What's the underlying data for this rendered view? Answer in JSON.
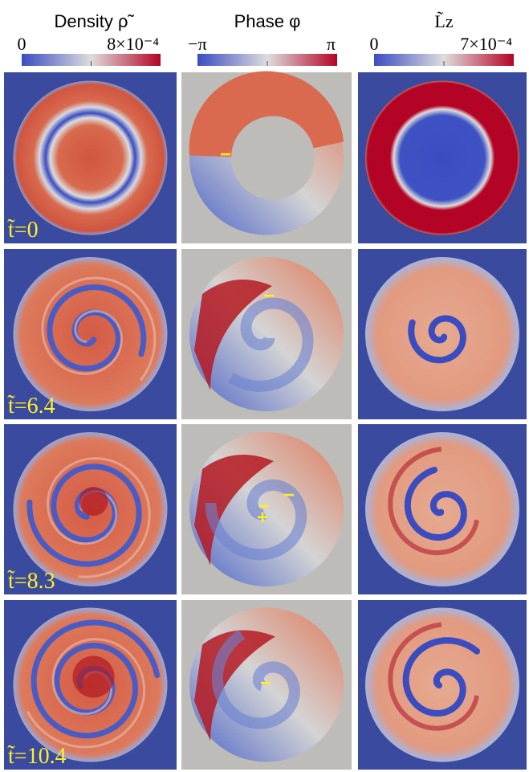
{
  "columns": [
    {
      "title": "Density ρ̃",
      "min_label": "0",
      "max_label": "8×10⁻⁴"
    },
    {
      "title": "Phase φ",
      "min_label": "−π",
      "max_label": "π"
    },
    {
      "title": "L̃z",
      "min_label": "0",
      "max_label": "7×10⁻⁴"
    }
  ],
  "rows": [
    {
      "time_label": "t̃=0",
      "phase_marks": [
        "−"
      ]
    },
    {
      "time_label": "t̃=6.4",
      "phase_marks": [
        "−"
      ]
    },
    {
      "time_label": "t̃=8.3",
      "phase_marks": [
        "−",
        "−",
        "+"
      ]
    },
    {
      "time_label": "t̃=10.4",
      "phase_marks": [
        "−"
      ]
    }
  ]
}
